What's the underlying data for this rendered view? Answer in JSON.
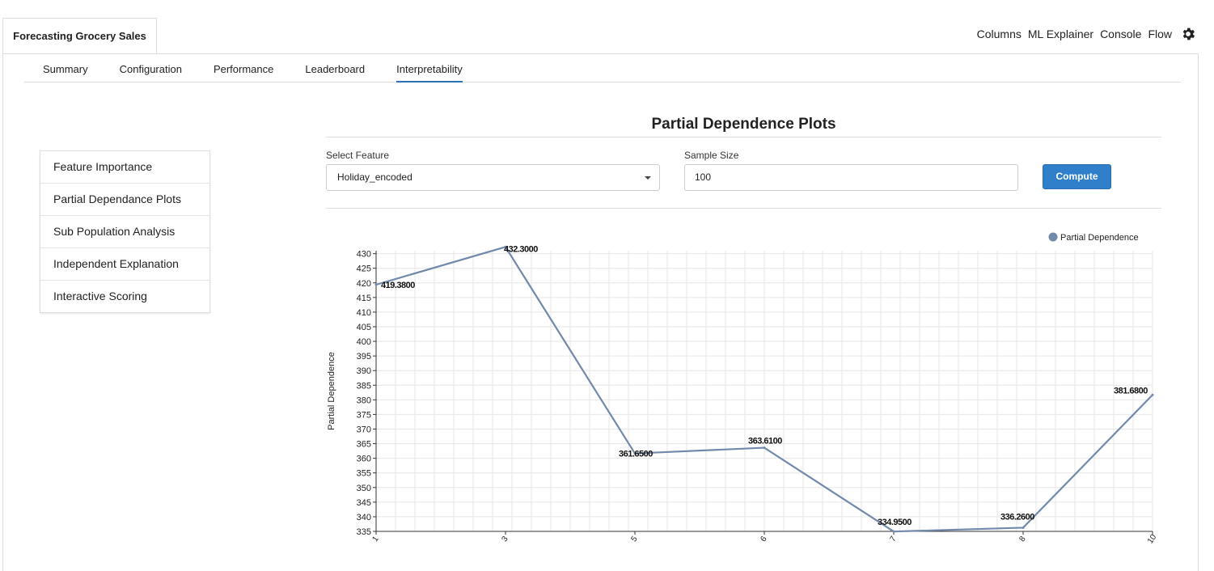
{
  "app_tab": "Forecasting Grocery Sales",
  "topnav": [
    "Columns",
    "ML Explainer",
    "Console",
    "Flow"
  ],
  "subtabs": [
    "Summary",
    "Configuration",
    "Performance",
    "Leaderboard",
    "Interpretability"
  ],
  "active_subtab": "Interpretability",
  "menu": [
    "Feature Importance",
    "Partial Dependance Plots",
    "Sub Population Analysis",
    "Independent Explanation",
    "Interactive Scoring"
  ],
  "pdp": {
    "title": "Partial Dependence Plots",
    "select_label": "Select Feature",
    "select_value": "Holiday_encoded",
    "sample_label": "Sample Size",
    "sample_value": "100",
    "compute_label": "Compute"
  },
  "chart_data": {
    "type": "line",
    "x": [
      "1",
      "3",
      "5",
      "6",
      "7",
      "8",
      "10"
    ],
    "series": [
      {
        "name": "Partial Dependence",
        "values": [
          419.38,
          432.3,
          361.65,
          363.61,
          334.95,
          336.26,
          381.68
        ],
        "labels": [
          "419.3800",
          "432.3000",
          "361.6500",
          "363.6100",
          "334.9500",
          "336.2600",
          "381.6800"
        ]
      }
    ],
    "ylabel": "Partial Dependence",
    "xlabel": "",
    "ylim": [
      335,
      431
    ],
    "yticks": [
      "335",
      "340",
      "345",
      "350",
      "355",
      "360",
      "365",
      "370",
      "375",
      "380",
      "385",
      "390",
      "395",
      "400",
      "405",
      "410",
      "415",
      "420",
      "425",
      "430"
    ],
    "grid": true,
    "legend": "top-right",
    "line_color": "#7189ab"
  }
}
